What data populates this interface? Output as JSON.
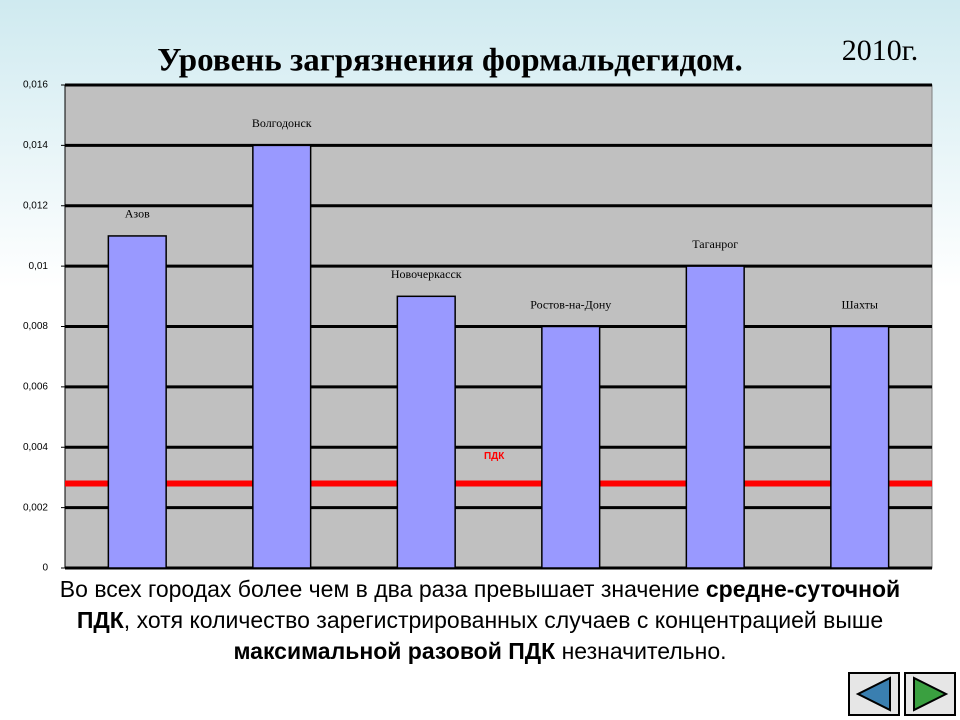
{
  "chart_data": {
    "type": "bar",
    "title": "Уровень загрязнения формальдегидом.",
    "subtitle": "2010г.",
    "categories": [
      "Азов",
      "Волгодонск",
      "Новочеркасск",
      "Ростов-на-Дону",
      "Таганрог",
      "Шахты"
    ],
    "values": [
      0.011,
      0.014,
      0.009,
      0.008,
      0.01,
      0.008
    ],
    "color": "#9999ff",
    "ylim": [
      0,
      0.016
    ],
    "yticks": [
      0,
      {
        "value": 0.002,
        "label": "0,002"
      },
      {
        "value": 0.004,
        "label": "0,004"
      },
      {
        "value": 0.006,
        "label": "0,006"
      },
      {
        "value": 0.008,
        "label": "0,008"
      },
      {
        "value": 0.01,
        "label": "0,01"
      },
      {
        "value": 0.012,
        "label": "0,012"
      },
      {
        "value": 0.014,
        "label": "0,014"
      },
      {
        "value": 0.016,
        "label": "0,016"
      }
    ],
    "grid": true,
    "reference_line": {
      "label": "ПДК",
      "value": 0.0028,
      "color": "#ff0000"
    }
  },
  "body": [
    "Во всех городах более чем в два раза превышает значение ",
    "средне-суточной ПДК",
    ", хотя количество зарегистрированных случаев с концентрацией выше ",
    "максимальной разовой ПДК",
    " незначительно."
  ]
}
